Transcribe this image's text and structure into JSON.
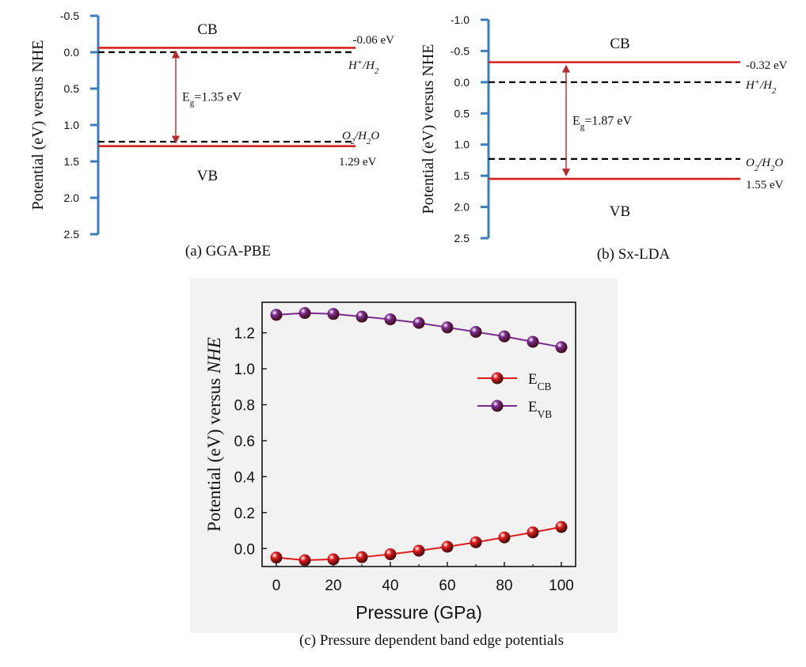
{
  "chart_data": [
    {
      "type": "band-diagram",
      "panel": "a",
      "caption": "(a) GGA-PBE",
      "ylabel": "Potential (eV) versus NHE",
      "ylim": [
        -0.5,
        2.5
      ],
      "yticks": [
        "-0.5",
        "0.0",
        "0.5",
        "1.0",
        "1.5",
        "2.0",
        "2.5"
      ],
      "inverted_axis": true,
      "cb": {
        "value": -0.06,
        "label": "-0.06 eV",
        "name": "CB"
      },
      "vb": {
        "value": 1.29,
        "label": "1.29 eV",
        "name": "VB"
      },
      "h_ref": {
        "value": 0.0,
        "label": "H+/H2"
      },
      "o_ref": {
        "value": 1.23,
        "label": "O2/H2O"
      },
      "gap_label": "Eg=1.35 eV",
      "colors": {
        "axis": "#3a7ebf",
        "band": "#d42020",
        "arrow": "#b52a2a",
        "ref": "#000000"
      }
    },
    {
      "type": "band-diagram",
      "panel": "b",
      "caption": "(b) Sx-LDA",
      "ylabel": "Potential (eV) versus NHE",
      "ylim": [
        -1.0,
        2.5
      ],
      "yticks": [
        "-1.0",
        "-0.5",
        "0.0",
        "0.5",
        "1.0",
        "1.5",
        "2.0",
        "2.5"
      ],
      "inverted_axis": true,
      "cb": {
        "value": -0.32,
        "label": "-0.32 eV",
        "name": "CB"
      },
      "vb": {
        "value": 1.55,
        "label": "1.55 eV",
        "name": "VB"
      },
      "h_ref": {
        "value": 0.0,
        "label": "H+/H2"
      },
      "o_ref": {
        "value": 1.23,
        "label": "O2/H2O"
      },
      "gap_label": "Eg=1.87 eV",
      "colors": {
        "axis": "#3a7ebf",
        "band": "#d42020",
        "arrow": "#b52a2a",
        "ref": "#000000"
      }
    },
    {
      "type": "line",
      "panel": "c",
      "caption": "(c) Pressure dependent band edge potentials",
      "xlabel": "Pressure (GPa)",
      "ylabel": "Potential (eV) versus NHE",
      "xlim": [
        -5,
        105
      ],
      "ylim": [
        -0.1,
        1.37
      ],
      "xticks": [
        0,
        20,
        40,
        60,
        80,
        100
      ],
      "yticks": [
        0.0,
        0.2,
        0.4,
        0.6,
        0.8,
        1.0,
        1.2
      ],
      "x": [
        0,
        10,
        20,
        30,
        40,
        50,
        60,
        70,
        80,
        90,
        100
      ],
      "series": [
        {
          "name": "ECB",
          "color": "#e01b1b",
          "values": [
            -0.05,
            -0.065,
            -0.06,
            -0.048,
            -0.032,
            -0.012,
            0.01,
            0.035,
            0.062,
            0.09,
            0.12
          ]
        },
        {
          "name": "EVB",
          "color": "#7a2a8e",
          "values": [
            1.3,
            1.31,
            1.305,
            1.29,
            1.275,
            1.255,
            1.23,
            1.205,
            1.18,
            1.15,
            1.12
          ]
        }
      ],
      "legend_position": "middle-right",
      "grid": false,
      "background": "#f2f2f2"
    }
  ]
}
